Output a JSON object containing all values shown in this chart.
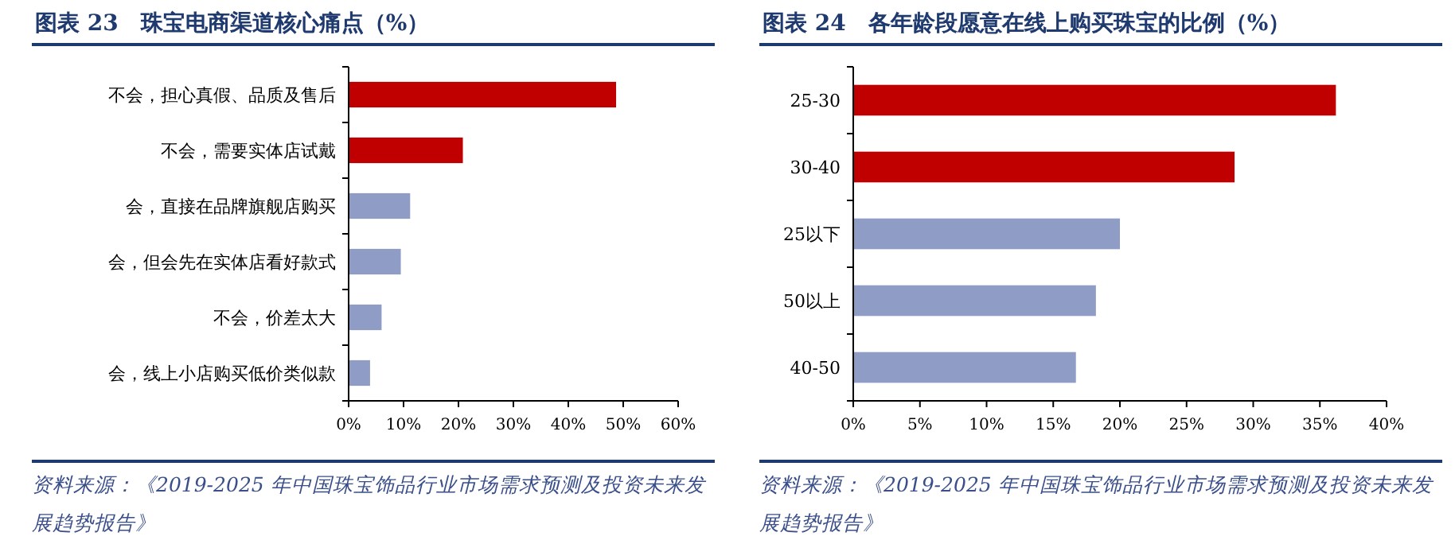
{
  "chart_data": [
    {
      "type": "bar",
      "orientation": "horizontal",
      "title": "图表 23　珠宝电商渠道核心痛点（%）",
      "categories": [
        "不会，担心真假、品质及售后",
        "不会，需要实体店试戴",
        "会，直接在品牌旗舰店购买",
        "会，但会先在实体店看好款式",
        "不会，价差太大",
        "会，线上小店购买低价类似款"
      ],
      "values": [
        48.7,
        20.8,
        11.2,
        9.5,
        6.0,
        3.9
      ],
      "colors": [
        "#c00000",
        "#c00000",
        "#8e9cc6",
        "#8e9cc6",
        "#8e9cc6",
        "#8e9cc6"
      ],
      "xlim": [
        0,
        60
      ],
      "xticks": [
        {
          "value": 0,
          "label": "0%"
        },
        {
          "value": 10,
          "label": "10%"
        },
        {
          "value": 20,
          "label": "20%"
        },
        {
          "value": 30,
          "label": "30%"
        },
        {
          "value": 40,
          "label": "40%"
        },
        {
          "value": 50,
          "label": "50%"
        },
        {
          "value": 60,
          "label": "60%"
        }
      ],
      "grid": false,
      "annotations": [
        "资料来源：《2019-2025 年中国珠宝饰品行业市场需求预测及投资未来发展趋势报告》"
      ]
    },
    {
      "type": "bar",
      "orientation": "horizontal",
      "title": "图表 24　各年龄段愿意在线上购买珠宝的比例（%）",
      "categories": [
        "25-30",
        "30-40",
        "25以下",
        "50以上",
        "40-50"
      ],
      "values": [
        36.2,
        28.6,
        20.0,
        18.2,
        16.7
      ],
      "colors": [
        "#c00000",
        "#c00000",
        "#8e9cc6",
        "#8e9cc6",
        "#8e9cc6"
      ],
      "xlim": [
        0,
        40
      ],
      "xticks": [
        {
          "value": 0,
          "label": "0%"
        },
        {
          "value": 5,
          "label": "5%"
        },
        {
          "value": 10,
          "label": "10%"
        },
        {
          "value": 15,
          "label": "15%"
        },
        {
          "value": 20,
          "label": "20%"
        },
        {
          "value": 25,
          "label": "25%"
        },
        {
          "value": 30,
          "label": "30%"
        },
        {
          "value": 35,
          "label": "35%"
        },
        {
          "value": 40,
          "label": "40%"
        }
      ],
      "grid": false,
      "annotations": [
        "资料来源：《2019-2025 年中国珠宝饰品行业市场需求预测及投资未来发展趋势报告》"
      ]
    }
  ]
}
